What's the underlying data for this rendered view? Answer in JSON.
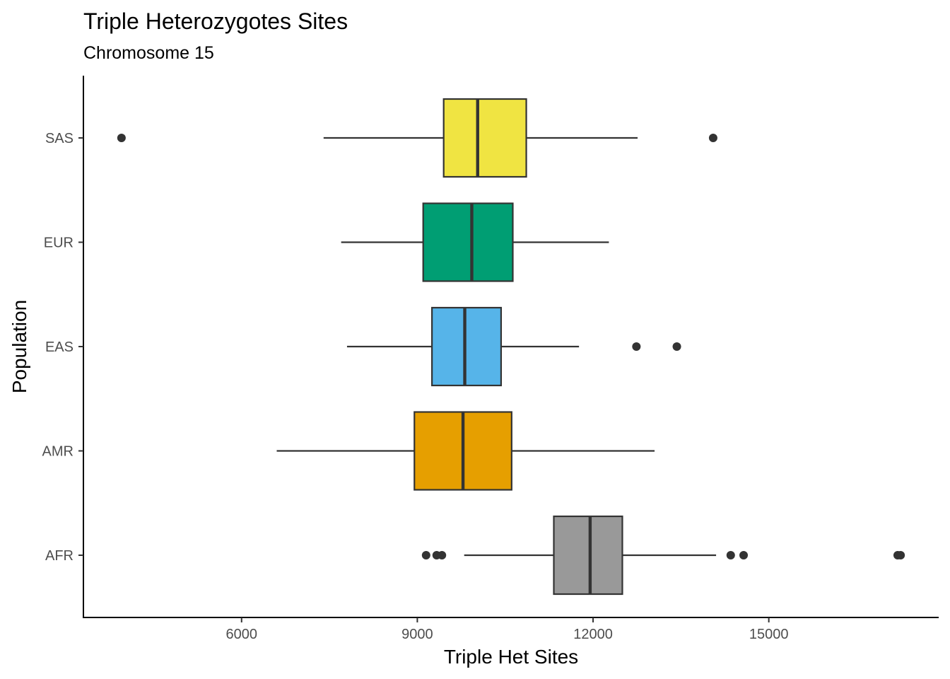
{
  "chart_data": {
    "type": "boxplot",
    "orientation": "horizontal",
    "title": "Triple Heterozygotes Sites",
    "subtitle": "Chromosome 15",
    "xlabel": "Triple Het Sites",
    "ylabel": "Population",
    "xlim": [
      3300,
      17900
    ],
    "xticks": [
      6000,
      9000,
      12000,
      15000
    ],
    "xtick_labels": [
      "6000",
      "9000",
      "12000",
      "15000"
    ],
    "categories": [
      "AFR",
      "AMR",
      "EAS",
      "EUR",
      "SAS"
    ],
    "series": [
      {
        "name": "AFR",
        "color": "#999999",
        "whisker_low": 9800,
        "q1": 11330,
        "median": 11950,
        "q3": 12500,
        "whisker_high": 14100,
        "outliers": [
          9150,
          9330,
          9420,
          14350,
          14570,
          17200,
          17250
        ]
      },
      {
        "name": "AMR",
        "color": "#E69F00",
        "whisker_low": 6600,
        "q1": 8950,
        "median": 9780,
        "q3": 10610,
        "whisker_high": 13050,
        "outliers": []
      },
      {
        "name": "EAS",
        "color": "#56B4E9",
        "whisker_low": 7800,
        "q1": 9250,
        "median": 9810,
        "q3": 10430,
        "whisker_high": 11760,
        "outliers": [
          12740,
          13430
        ]
      },
      {
        "name": "EUR",
        "color": "#009E73",
        "whisker_low": 7700,
        "q1": 9100,
        "median": 9930,
        "q3": 10630,
        "whisker_high": 12270,
        "outliers": []
      },
      {
        "name": "SAS",
        "color": "#F0E442",
        "whisker_low": 7400,
        "q1": 9450,
        "median": 10030,
        "q3": 10860,
        "whisker_high": 12760,
        "outliers": [
          3950,
          14050
        ]
      }
    ],
    "grid": false,
    "legend": "none"
  }
}
